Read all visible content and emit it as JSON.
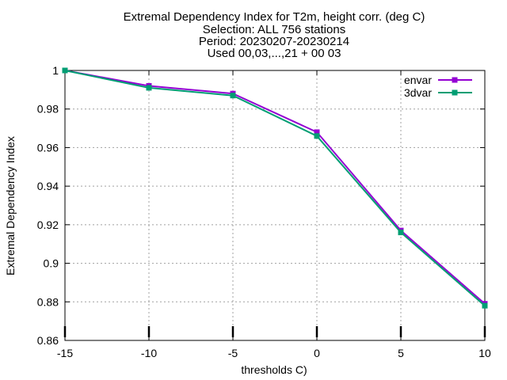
{
  "chart_data": {
    "type": "line",
    "title_lines": [
      "Extremal Dependency Index  for T2m, height corr. (deg C)",
      "Selection: ALL    756 stations",
      "Period: 20230207-20230214",
      "Used 00,03,...,21 + 00 03"
    ],
    "xlabel": "thresholds C)",
    "ylabel": "Extremal Dependency Index",
    "xlim": [
      -15,
      10
    ],
    "ylim": [
      0.86,
      1.0
    ],
    "xticks": [
      -15,
      -10,
      -5,
      0,
      5,
      10
    ],
    "yticks": [
      0.86,
      0.88,
      0.9,
      0.92,
      0.94,
      0.96,
      0.98,
      1.0
    ],
    "xtick_labels": [
      "-15",
      "-10",
      "-5",
      "0",
      "5",
      "10"
    ],
    "ytick_labels": [
      "0.86",
      "0.88",
      "0.9",
      "0.92",
      "0.94",
      "0.96",
      "0.98",
      "1"
    ],
    "grid": true,
    "legend_position": "top-right",
    "x": [
      -15,
      -10,
      -5,
      0,
      5,
      10
    ],
    "series": [
      {
        "name": "envar",
        "color": "#9400d3",
        "values": [
          1.0,
          0.992,
          0.988,
          0.968,
          0.917,
          0.879
        ]
      },
      {
        "name": "3dvar",
        "color": "#009e73",
        "values": [
          1.0,
          0.991,
          0.987,
          0.966,
          0.916,
          0.878
        ]
      }
    ]
  }
}
